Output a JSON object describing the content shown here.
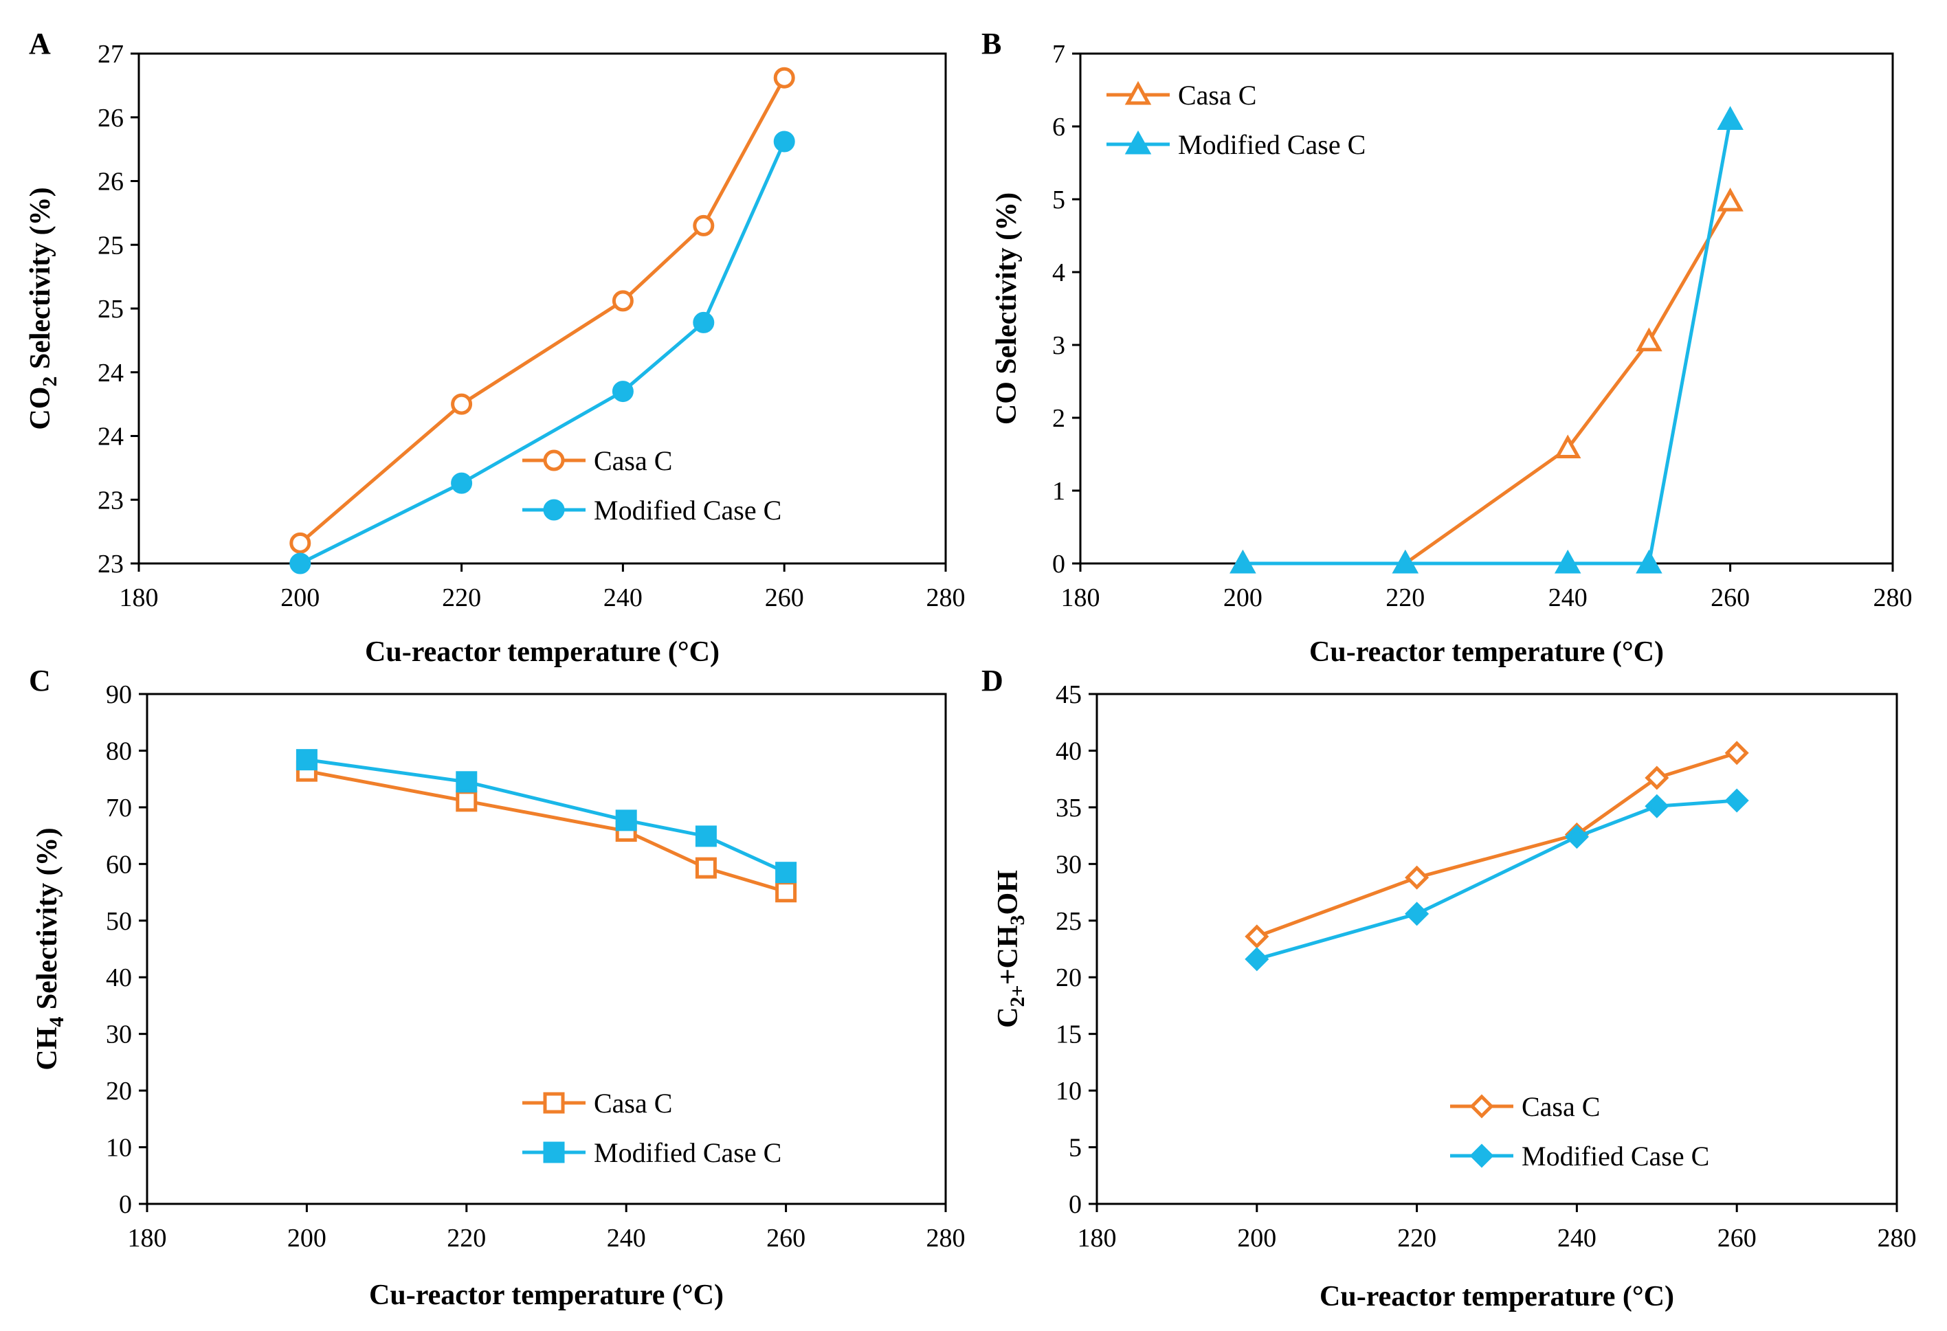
{
  "figure": {
    "background": "#ffffff"
  },
  "colors": {
    "orange": "#f07f2a",
    "blue": "#1ab7e8",
    "axis": "#000000"
  },
  "chart_data": [
    {
      "panel": "A",
      "type": "line",
      "xlabel": "Cu-reactor temperature (°C)",
      "ylabel_parts": [
        "CO",
        "2",
        " Selectivity (%)"
      ],
      "xlim": [
        180,
        280
      ],
      "ylim": [
        23,
        27
      ],
      "x_ticks": [
        "180",
        "200",
        "220",
        "240",
        "260",
        "280"
      ],
      "y_ticks": [
        "23",
        "23",
        "24",
        "24",
        "25",
        "25",
        "26",
        "26",
        "27"
      ],
      "y_tick_values": [
        23,
        23.5,
        24,
        24.5,
        25,
        25.5,
        26,
        26.5,
        27
      ],
      "legend_position": "lower-right",
      "series": [
        {
          "name": "Casa C",
          "marker": "circle-open",
          "color": "#f07f2a",
          "x": [
            200,
            220,
            240,
            250,
            260
          ],
          "y": [
            23.16,
            24.25,
            25.06,
            25.65,
            26.81
          ]
        },
        {
          "name": "Modified Case C",
          "marker": "circle-filled",
          "color": "#1ab7e8",
          "x": [
            200,
            220,
            240,
            250,
            260
          ],
          "y": [
            23.0,
            23.63,
            24.35,
            24.89,
            26.31
          ]
        }
      ]
    },
    {
      "panel": "B",
      "type": "line",
      "xlabel": "Cu-reactor temperature (°C)",
      "ylabel_parts": [
        "CO Selectivity (%)"
      ],
      "xlim": [
        180,
        280
      ],
      "ylim": [
        0,
        7
      ],
      "x_ticks": [
        "180",
        "200",
        "220",
        "240",
        "260",
        "280"
      ],
      "y_ticks": [
        "0",
        "1",
        "2",
        "3",
        "4",
        "5",
        "6",
        "7"
      ],
      "y_tick_values": [
        0,
        1,
        2,
        3,
        4,
        5,
        6,
        7
      ],
      "legend_position": "top-left",
      "series": [
        {
          "name": "Casa C",
          "marker": "triangle-open",
          "color": "#f07f2a",
          "x": [
            200,
            220,
            240,
            250,
            260
          ],
          "y": [
            0,
            0,
            1.58,
            3.05,
            4.97
          ]
        },
        {
          "name": "Modified Case C",
          "marker": "triangle-filled",
          "color": "#1ab7e8",
          "x": [
            200,
            220,
            240,
            250,
            260
          ],
          "y": [
            0,
            0,
            0,
            0,
            6.09
          ]
        }
      ]
    },
    {
      "panel": "C",
      "type": "line",
      "xlabel": "Cu-reactor temperature (°C)",
      "ylabel_parts": [
        "CH",
        "4",
        " Selectivity (%)"
      ],
      "xlim": [
        180,
        280
      ],
      "ylim": [
        0,
        90
      ],
      "x_ticks": [
        "180",
        "200",
        "220",
        "240",
        "260",
        "280"
      ],
      "y_ticks": [
        "0",
        "10",
        "20",
        "30",
        "40",
        "50",
        "60",
        "70",
        "80",
        "90"
      ],
      "y_tick_values": [
        0,
        10,
        20,
        30,
        40,
        50,
        60,
        70,
        80,
        90
      ],
      "legend_position": "lower-right",
      "series": [
        {
          "name": "Casa C",
          "marker": "square-open",
          "color": "#f07f2a",
          "x": [
            200,
            220,
            240,
            250,
            260
          ],
          "y": [
            76.4,
            71.1,
            65.8,
            59.3,
            55.1
          ]
        },
        {
          "name": "Modified Case C",
          "marker": "square-filled",
          "color": "#1ab7e8",
          "x": [
            200,
            220,
            240,
            250,
            260
          ],
          "y": [
            78.4,
            74.5,
            67.7,
            64.9,
            58.5
          ]
        }
      ]
    },
    {
      "panel": "D",
      "type": "line",
      "xlabel": "Cu-reactor temperature (°C)",
      "ylabel_parts": [
        "C",
        "2+",
        "+CH",
        "3",
        "OH"
      ],
      "xlim": [
        180,
        280
      ],
      "ylim": [
        0,
        45
      ],
      "x_ticks": [
        "180",
        "200",
        "220",
        "240",
        "260",
        "280"
      ],
      "y_ticks": [
        "0",
        "5",
        "10",
        "15",
        "20",
        "25",
        "30",
        "35",
        "40",
        "45"
      ],
      "y_tick_values": [
        0,
        5,
        10,
        15,
        20,
        25,
        30,
        35,
        40,
        45
      ],
      "legend_position": "lower-right",
      "series": [
        {
          "name": "Casa C",
          "marker": "diamond-open",
          "color": "#f07f2a",
          "x": [
            200,
            220,
            240,
            250,
            260
          ],
          "y": [
            23.6,
            28.8,
            32.6,
            37.6,
            39.8
          ]
        },
        {
          "name": "Modified Case C",
          "marker": "diamond-filled",
          "color": "#1ab7e8",
          "x": [
            200,
            220,
            240,
            250,
            260
          ],
          "y": [
            21.6,
            25.6,
            32.4,
            35.1,
            35.6
          ]
        }
      ]
    }
  ]
}
